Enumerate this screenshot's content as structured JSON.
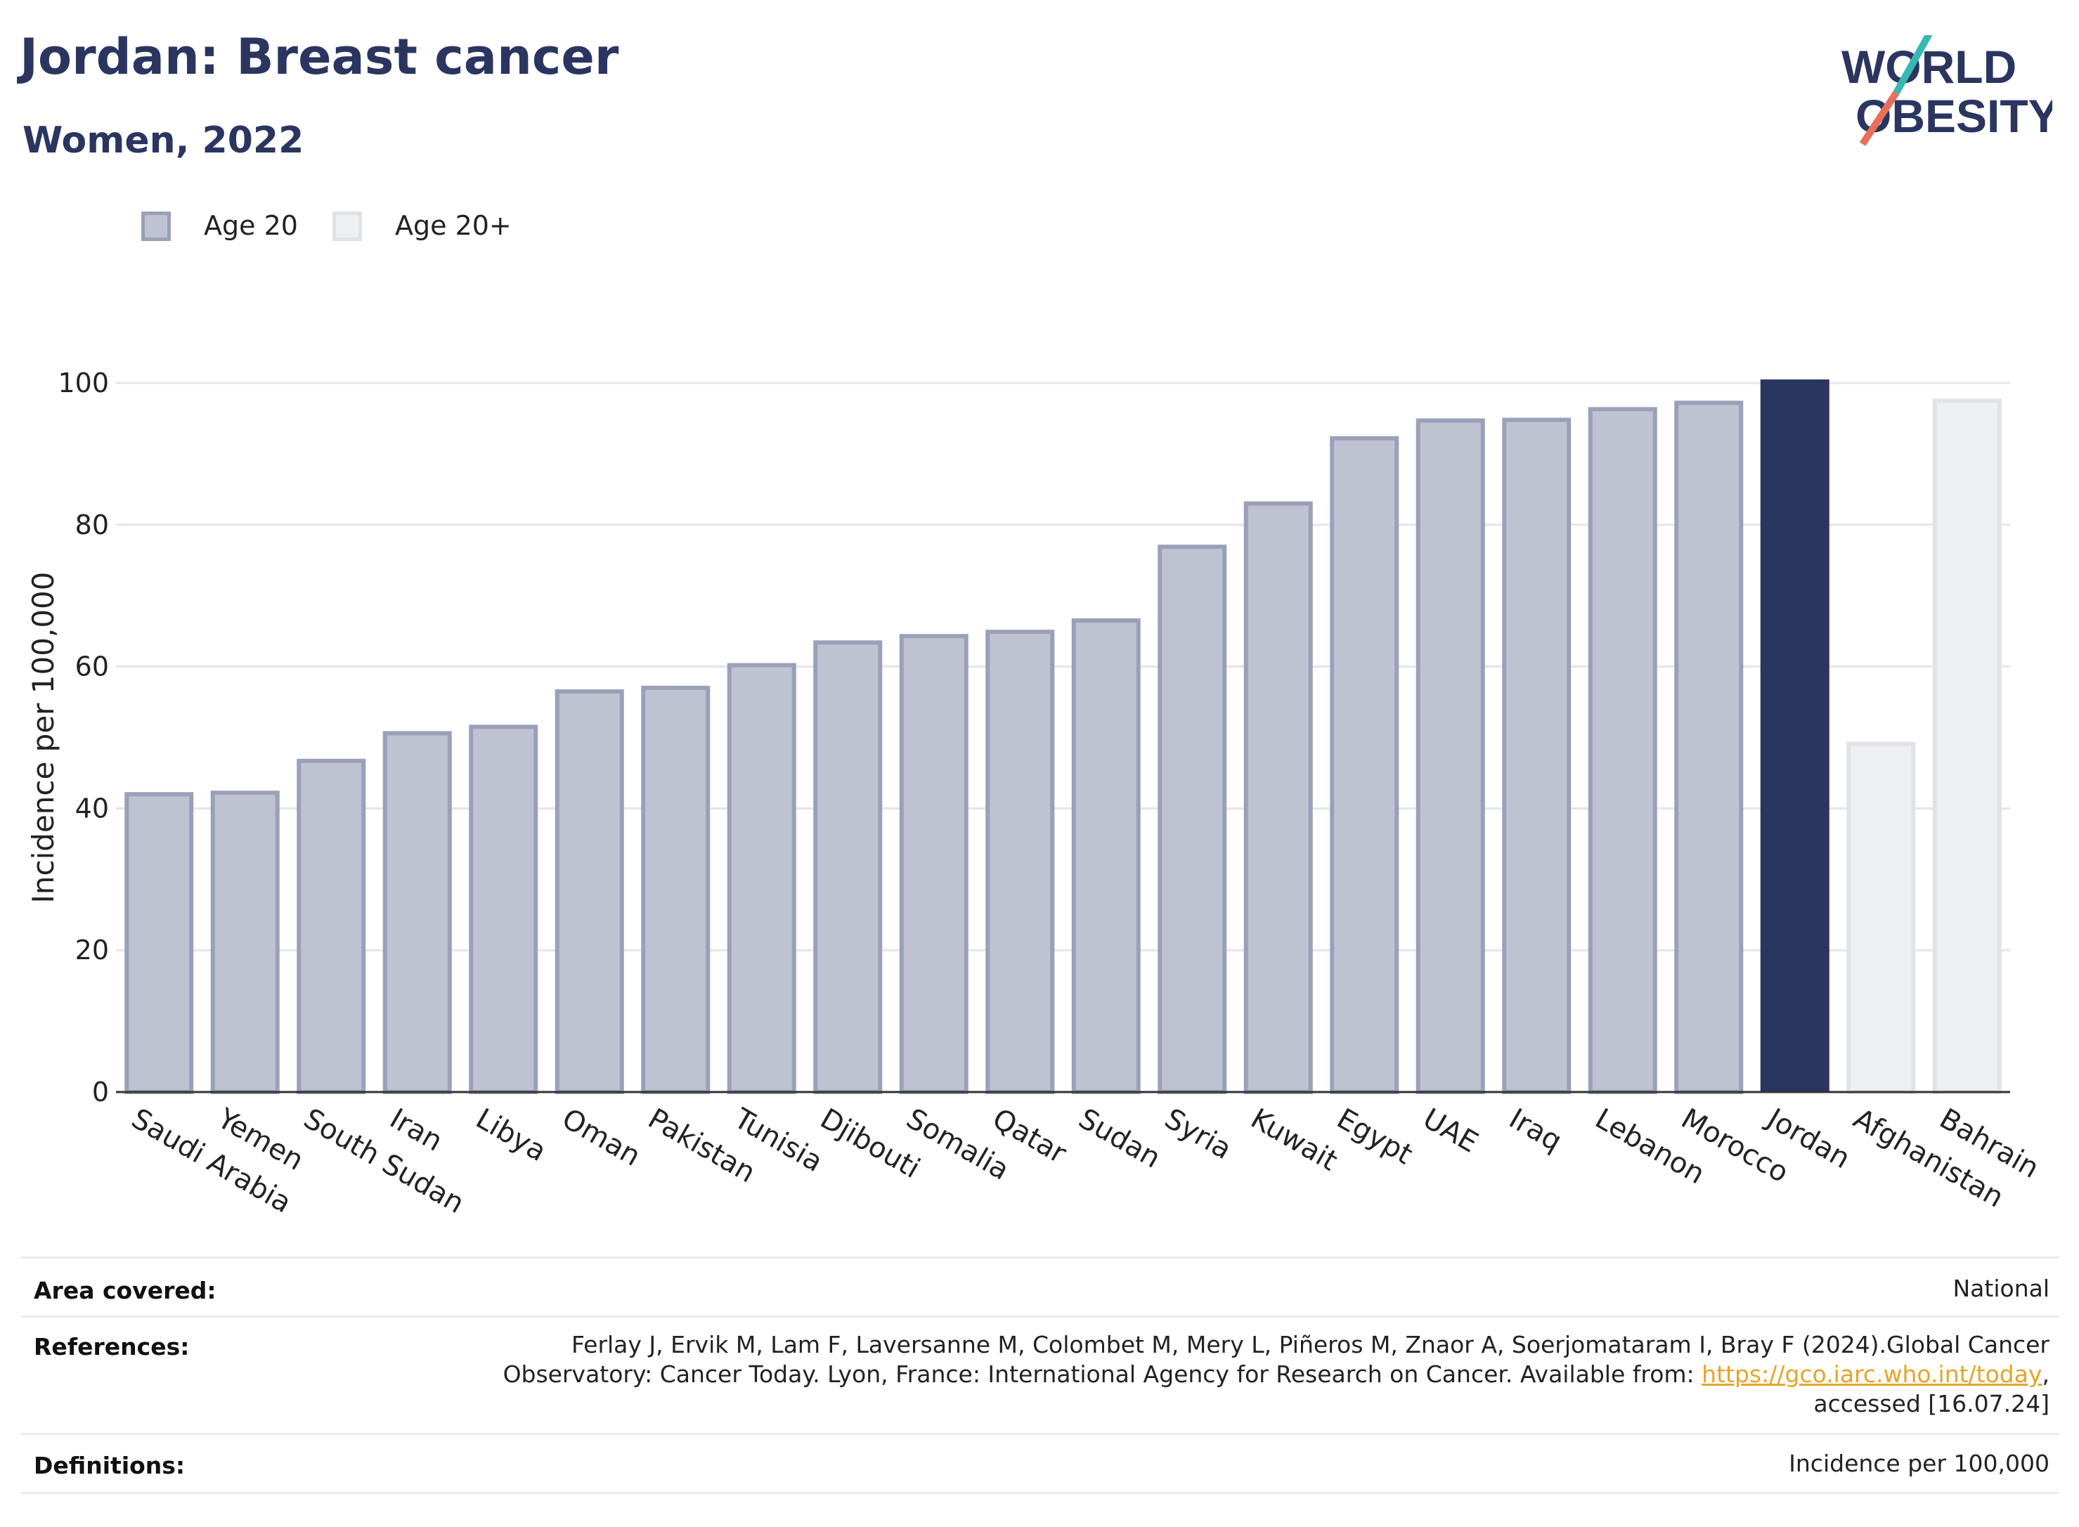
{
  "header": {
    "title": "Jordan: Breast cancer",
    "subtitle": "Women, 2022"
  },
  "logo": {
    "line1": "WORLD",
    "line2": "OBESITY"
  },
  "colors": {
    "age20_fill": "#bfc2d0",
    "age20_stroke": "#9aa0b9",
    "age20plus_fill": "#eeeff3",
    "age20plus_stroke": "#e0e2e8",
    "highlight": "#2a3560",
    "logo_navy": "#2a3560",
    "logo_teal": "#38b8b0",
    "logo_coral": "#e8705a"
  },
  "legend": [
    {
      "label": "Age 20",
      "key": "age20"
    },
    {
      "label": "Age 20+",
      "key": "age20plus"
    }
  ],
  "chart_data": {
    "type": "bar",
    "ylabel": "Incidence per 100,000",
    "ylim": [
      0,
      100
    ],
    "yticks": [
      0,
      20,
      40,
      60,
      80,
      100
    ],
    "grid": true,
    "legend_position": "top-left",
    "categories": [
      "Saudi Arabia",
      "Yemen",
      "South Sudan",
      "Iran",
      "Libya",
      "Oman",
      "Pakistan",
      "Tunisia",
      "Djibouti",
      "Somalia",
      "Qatar",
      "Sudan",
      "Syria",
      "Kuwait",
      "Egypt",
      "UAE",
      "Iraq",
      "Lebanon",
      "Morocco",
      "Jordan",
      "Afghanistan",
      "Bahrain"
    ],
    "values": [
      42.3,
      42.5,
      47.0,
      50.9,
      51.8,
      56.8,
      57.3,
      60.5,
      63.7,
      64.6,
      65.2,
      66.8,
      77.2,
      83.3,
      92.5,
      95.0,
      95.1,
      96.6,
      97.5,
      100.5,
      49.4,
      97.8
    ],
    "groups": [
      "age20",
      "age20",
      "age20",
      "age20",
      "age20",
      "age20",
      "age20",
      "age20",
      "age20",
      "age20",
      "age20",
      "age20",
      "age20",
      "age20",
      "age20",
      "age20",
      "age20",
      "age20",
      "age20",
      "highlight",
      "age20plus",
      "age20plus"
    ]
  },
  "footer": {
    "area_label": "Area covered:",
    "area_value": "National",
    "references_label": "References:",
    "references_line1": "Ferlay J, Ervik M, Lam F, Laversanne M, Colombet M, Mery L, Piñeros M, Znaor A, Soerjomataram I, Bray F (2024).Global Cancer",
    "references_line2_pre": "Observatory: Cancer Today. Lyon, France: International Agency for Research on Cancer. Available from: ",
    "references_link": "https://gco.iarc.who.int/today",
    "references_line2_post": ",",
    "references_line3": "accessed [16.07.24]",
    "definitions_label": "Definitions:",
    "definitions_value": "Incidence per 100,000"
  }
}
